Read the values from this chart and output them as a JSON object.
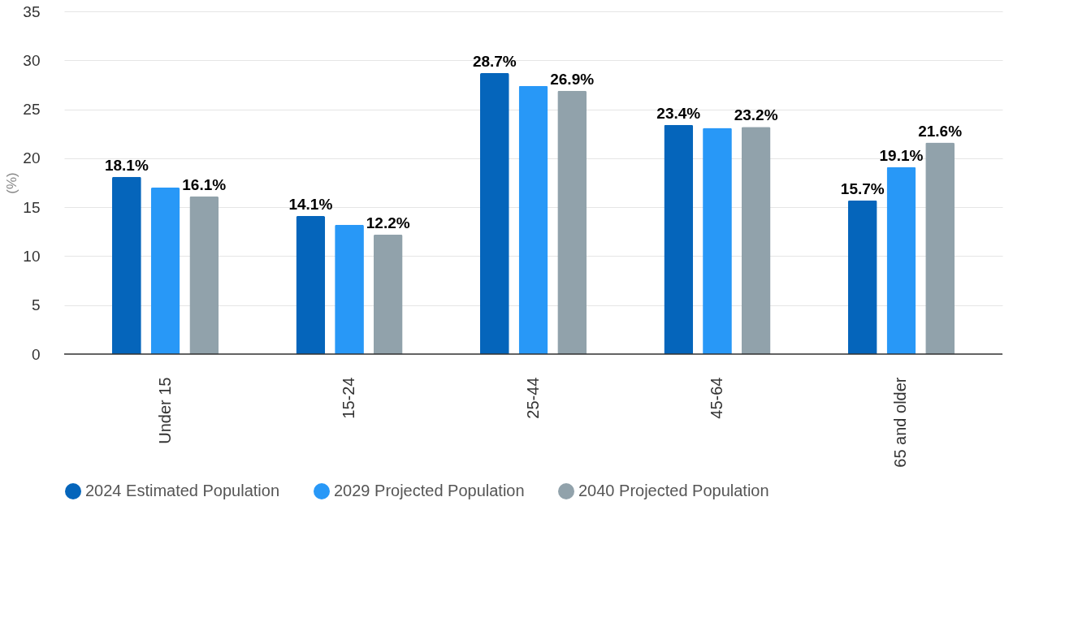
{
  "chart_data": {
    "type": "bar",
    "ylabel": "(%)",
    "categories": [
      "Under 15",
      "15-24",
      "25-44",
      "45-64",
      "65 and older"
    ],
    "series": [
      {
        "name": "2024 Estimated Population",
        "color": "#0565bb",
        "values": [
          18.1,
          14.1,
          28.7,
          23.4,
          15.7
        ],
        "value_labels": [
          "18.1%",
          "14.1%",
          "28.7%",
          "23.4%",
          "15.7%"
        ]
      },
      {
        "name": "2029 Projected Population",
        "color": "#2898f7",
        "values": [
          17.0,
          13.2,
          27.4,
          23.1,
          19.1
        ],
        "value_labels": [
          null,
          null,
          null,
          null,
          "19.1%"
        ]
      },
      {
        "name": "2040 Projected Population",
        "color": "#91a2ab",
        "values": [
          16.1,
          12.2,
          26.9,
          23.2,
          21.6
        ],
        "value_labels": [
          "16.1%",
          "12.2%",
          "26.9%",
          "23.2%",
          "21.6%"
        ]
      }
    ],
    "ylim": [
      0,
      35
    ],
    "yticks": [
      0,
      5,
      10,
      15,
      20,
      25,
      30,
      35
    ],
    "grid": "y",
    "legend": "bottom",
    "marker": "circle"
  }
}
